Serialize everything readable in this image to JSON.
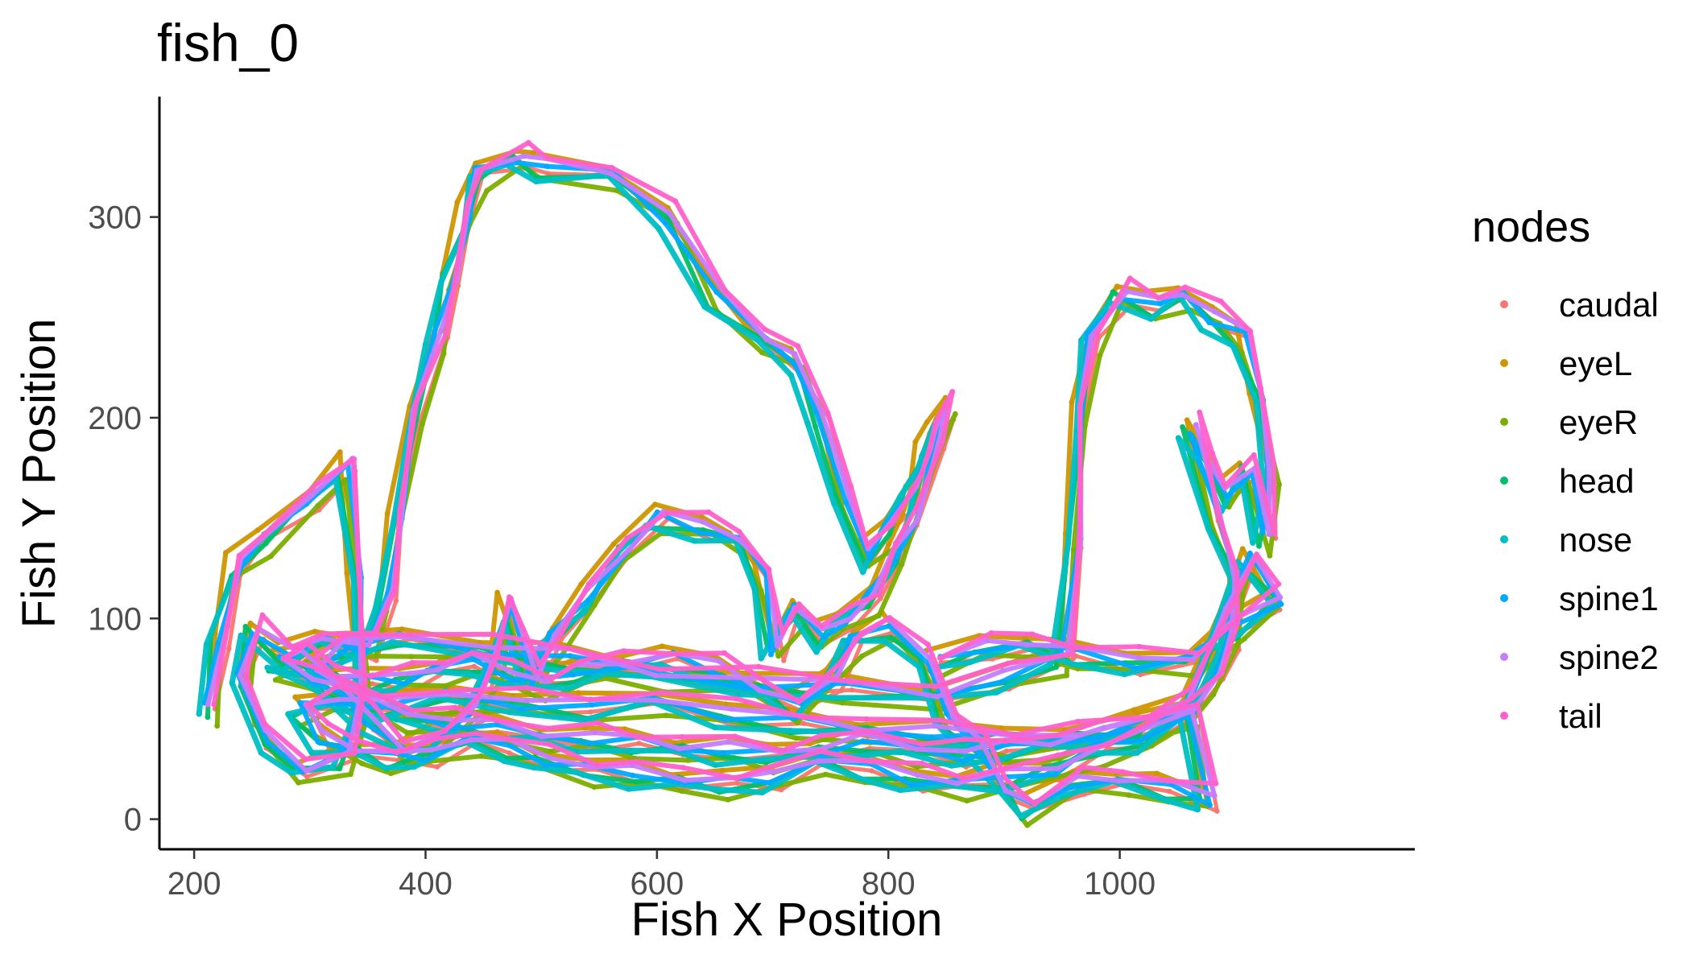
{
  "chart_data": {
    "type": "scatter",
    "title": "fish_0",
    "xlabel": "Fish X Position",
    "ylabel": "Fish Y Position",
    "xlim": [
      170,
      1255
    ],
    "ylim": [
      -15,
      360
    ],
    "x_ticks": [
      200,
      400,
      600,
      800,
      1000
    ],
    "y_ticks": [
      0,
      100,
      200,
      300
    ],
    "x_tick_labels": [
      "200",
      "400",
      "600",
      "800",
      "1000"
    ],
    "y_tick_labels": [
      "0",
      "100",
      "200",
      "300"
    ],
    "grid": false,
    "legend": {
      "title": "nodes",
      "placement": "right"
    },
    "base_path": [
      [
        212,
        55
      ],
      [
        220,
        90
      ],
      [
        235,
        125
      ],
      [
        260,
        140
      ],
      [
        300,
        160
      ],
      [
        330,
        175
      ],
      [
        340,
        120
      ],
      [
        345,
        60
      ],
      [
        330,
        30
      ],
      [
        290,
        25
      ],
      [
        260,
        40
      ],
      [
        240,
        70
      ],
      [
        250,
        95
      ],
      [
        280,
        80
      ],
      [
        310,
        90
      ],
      [
        350,
        85
      ],
      [
        365,
        110
      ],
      [
        375,
        150
      ],
      [
        390,
        200
      ],
      [
        410,
        240
      ],
      [
        420,
        270
      ],
      [
        435,
        300
      ],
      [
        445,
        322
      ],
      [
        480,
        330
      ],
      [
        500,
        324
      ],
      [
        560,
        322
      ],
      [
        610,
        300
      ],
      [
        650,
        260
      ],
      [
        690,
        240
      ],
      [
        720,
        228
      ],
      [
        740,
        200
      ],
      [
        760,
        160
      ],
      [
        780,
        130
      ],
      [
        800,
        145
      ],
      [
        820,
        165
      ],
      [
        830,
        180
      ],
      [
        840,
        195
      ],
      [
        850,
        205
      ],
      [
        838,
        185
      ],
      [
        820,
        150
      ],
      [
        805,
        130
      ],
      [
        785,
        110
      ],
      [
        760,
        100
      ],
      [
        740,
        90
      ],
      [
        720,
        105
      ],
      [
        700,
        85
      ],
      [
        690,
        120
      ],
      [
        670,
        140
      ],
      [
        640,
        145
      ],
      [
        600,
        150
      ],
      [
        570,
        135
      ],
      [
        540,
        110
      ],
      [
        510,
        90
      ],
      [
        490,
        70
      ],
      [
        470,
        105
      ],
      [
        460,
        80
      ],
      [
        440,
        55
      ],
      [
        410,
        40
      ],
      [
        380,
        35
      ],
      [
        350,
        50
      ],
      [
        320,
        65
      ],
      [
        300,
        75
      ],
      [
        330,
        85
      ],
      [
        380,
        90
      ],
      [
        450,
        85
      ],
      [
        520,
        80
      ],
      [
        600,
        72
      ],
      [
        680,
        68
      ],
      [
        760,
        65
      ],
      [
        840,
        62
      ],
      [
        900,
        70
      ],
      [
        950,
        80
      ],
      [
        960,
        140
      ],
      [
        965,
        200
      ],
      [
        975,
        240
      ],
      [
        1000,
        262
      ],
      [
        1030,
        255
      ],
      [
        1055,
        262
      ],
      [
        1080,
        250
      ],
      [
        1105,
        240
      ],
      [
        1120,
        210
      ],
      [
        1130,
        170
      ],
      [
        1125,
        140
      ],
      [
        1110,
        175
      ],
      [
        1090,
        160
      ],
      [
        1075,
        180
      ],
      [
        1060,
        195
      ],
      [
        1080,
        150
      ],
      [
        1100,
        120
      ],
      [
        1095,
        90
      ],
      [
        1080,
        70
      ],
      [
        1060,
        55
      ],
      [
        1020,
        40
      ],
      [
        980,
        35
      ],
      [
        940,
        25
      ],
      [
        900,
        20
      ],
      [
        860,
        18
      ],
      [
        820,
        20
      ],
      [
        780,
        25
      ],
      [
        740,
        30
      ],
      [
        700,
        20
      ],
      [
        660,
        18
      ],
      [
        620,
        20
      ],
      [
        580,
        22
      ],
      [
        540,
        25
      ],
      [
        500,
        30
      ],
      [
        470,
        35
      ],
      [
        440,
        40
      ],
      [
        400,
        32
      ],
      [
        370,
        30
      ],
      [
        340,
        35
      ],
      [
        310,
        40
      ],
      [
        290,
        55
      ],
      [
        320,
        60
      ],
      [
        360,
        55
      ],
      [
        420,
        62
      ],
      [
        480,
        58
      ],
      [
        540,
        55
      ],
      [
        600,
        60
      ],
      [
        660,
        52
      ],
      [
        720,
        48
      ],
      [
        780,
        45
      ],
      [
        840,
        42
      ],
      [
        900,
        40
      ],
      [
        960,
        42
      ],
      [
        1020,
        45
      ],
      [
        1060,
        55
      ],
      [
        1075,
        10
      ],
      [
        1040,
        15
      ],
      [
        1000,
        20
      ],
      [
        960,
        18
      ],
      [
        920,
        5
      ],
      [
        900,
        15
      ],
      [
        880,
        35
      ],
      [
        850,
        50
      ],
      [
        830,
        80
      ],
      [
        800,
        95
      ],
      [
        770,
        90
      ],
      [
        750,
        70
      ],
      [
        720,
        55
      ],
      [
        690,
        65
      ],
      [
        650,
        75
      ],
      [
        610,
        80
      ],
      [
        570,
        78
      ],
      [
        530,
        72
      ],
      [
        500,
        68
      ],
      [
        470,
        72
      ],
      [
        440,
        78
      ],
      [
        410,
        75
      ],
      [
        380,
        70
      ],
      [
        350,
        68
      ],
      [
        320,
        72
      ],
      [
        290,
        80
      ],
      [
        270,
        78
      ],
      [
        300,
        70
      ],
      [
        340,
        60
      ],
      [
        380,
        52
      ],
      [
        420,
        48
      ],
      [
        460,
        45
      ],
      [
        500,
        42
      ],
      [
        540,
        40
      ],
      [
        580,
        38
      ],
      [
        620,
        36
      ],
      [
        660,
        34
      ],
      [
        700,
        32
      ],
      [
        740,
        35
      ],
      [
        780,
        38
      ],
      [
        820,
        35
      ],
      [
        860,
        32
      ],
      [
        900,
        35
      ],
      [
        940,
        38
      ],
      [
        980,
        42
      ],
      [
        1020,
        48
      ],
      [
        1060,
        60
      ],
      [
        1090,
        100
      ],
      [
        1110,
        130
      ],
      [
        1135,
        110
      ],
      [
        1100,
        95
      ],
      [
        1060,
        80
      ],
      [
        1010,
        78
      ],
      [
        960,
        82
      ],
      [
        920,
        88
      ],
      [
        880,
        85
      ],
      [
        840,
        78
      ]
    ],
    "series": [
      {
        "name": "caudal",
        "color": "#F8766D",
        "dx": 6,
        "dy": -3,
        "line_width": 5,
        "point_size": 3.2
      },
      {
        "name": "eyeL",
        "color": "#CD9600",
        "dx": -4,
        "dy": 5,
        "line_width": 6,
        "point_size": 3.4
      },
      {
        "name": "eyeR",
        "color": "#7CAE00",
        "dx": 4,
        "dy": -6,
        "line_width": 6,
        "point_size": 3.4
      },
      {
        "name": "head",
        "color": "#00BE67",
        "dx": -2,
        "dy": -2,
        "line_width": 6,
        "point_size": 3.4
      },
      {
        "name": "nose",
        "color": "#00BFC4",
        "dx": -6,
        "dy": -4,
        "line_width": 7,
        "point_size": 3.6
      },
      {
        "name": "spine1",
        "color": "#00A9FF",
        "dx": 1,
        "dy": 0,
        "line_width": 6,
        "point_size": 3.4
      },
      {
        "name": "spine2",
        "color": "#C77CFF",
        "dx": 3,
        "dy": 2,
        "line_width": 6,
        "point_size": 3.4
      },
      {
        "name": "tail",
        "color": "#FF61CC",
        "dx": 5,
        "dy": 5,
        "line_width": 6,
        "point_size": 3.4
      }
    ]
  }
}
